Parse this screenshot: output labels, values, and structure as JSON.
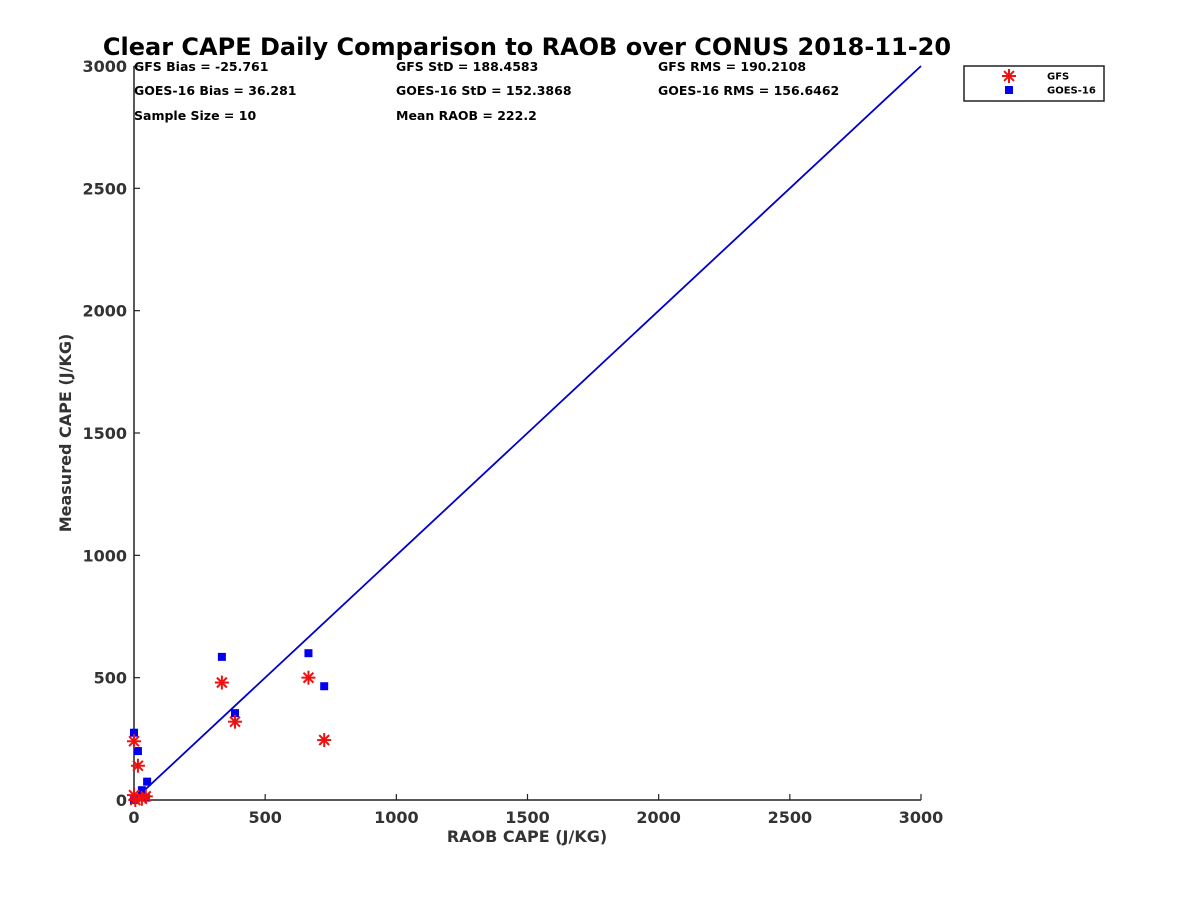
{
  "chart_data": {
    "type": "scatter",
    "title": "Clear CAPE Daily Comparison to RAOB over CONUS 2018-11-20",
    "xlabel": "RAOB CAPE (J/KG)",
    "ylabel": "Measured CAPE (J/KG)",
    "xlim": [
      0,
      3000
    ],
    "ylim": [
      0,
      3000
    ],
    "xticks": [
      0,
      500,
      1000,
      1500,
      2000,
      2500,
      3000
    ],
    "yticks": [
      0,
      500,
      1000,
      1500,
      2000,
      2500,
      3000
    ],
    "grid": false,
    "legend_position": "top-right outside",
    "stats": [
      [
        "GFS Bias = -25.761",
        "GFS StD = 188.4583",
        "GFS RMS = 190.2108"
      ],
      [
        "GOES-16 Bias = 36.281",
        "GOES-16 StD = 152.3868",
        "GOES-16 RMS = 156.6462"
      ],
      [
        "Sample Size = 10",
        "Mean RAOB = 222.2",
        ""
      ]
    ],
    "reference_line": {
      "x": [
        0,
        3000
      ],
      "y": [
        0,
        3000
      ],
      "color": "#0000cc"
    },
    "series": [
      {
        "name": "GFS",
        "marker": "asterisk",
        "color": "#ee1111",
        "points": [
          [
            0,
            240
          ],
          [
            0,
            20
          ],
          [
            5,
            0
          ],
          [
            15,
            140
          ],
          [
            30,
            5
          ],
          [
            45,
            15
          ],
          [
            335,
            480
          ],
          [
            385,
            320
          ],
          [
            665,
            500
          ],
          [
            725,
            245
          ]
        ]
      },
      {
        "name": "GOES-16",
        "marker": "square",
        "color": "#0000ee",
        "points": [
          [
            0,
            275
          ],
          [
            0,
            0
          ],
          [
            15,
            200
          ],
          [
            30,
            40
          ],
          [
            45,
            10
          ],
          [
            50,
            75
          ],
          [
            335,
            585
          ],
          [
            385,
            355
          ],
          [
            665,
            600
          ],
          [
            725,
            465
          ]
        ]
      }
    ]
  }
}
